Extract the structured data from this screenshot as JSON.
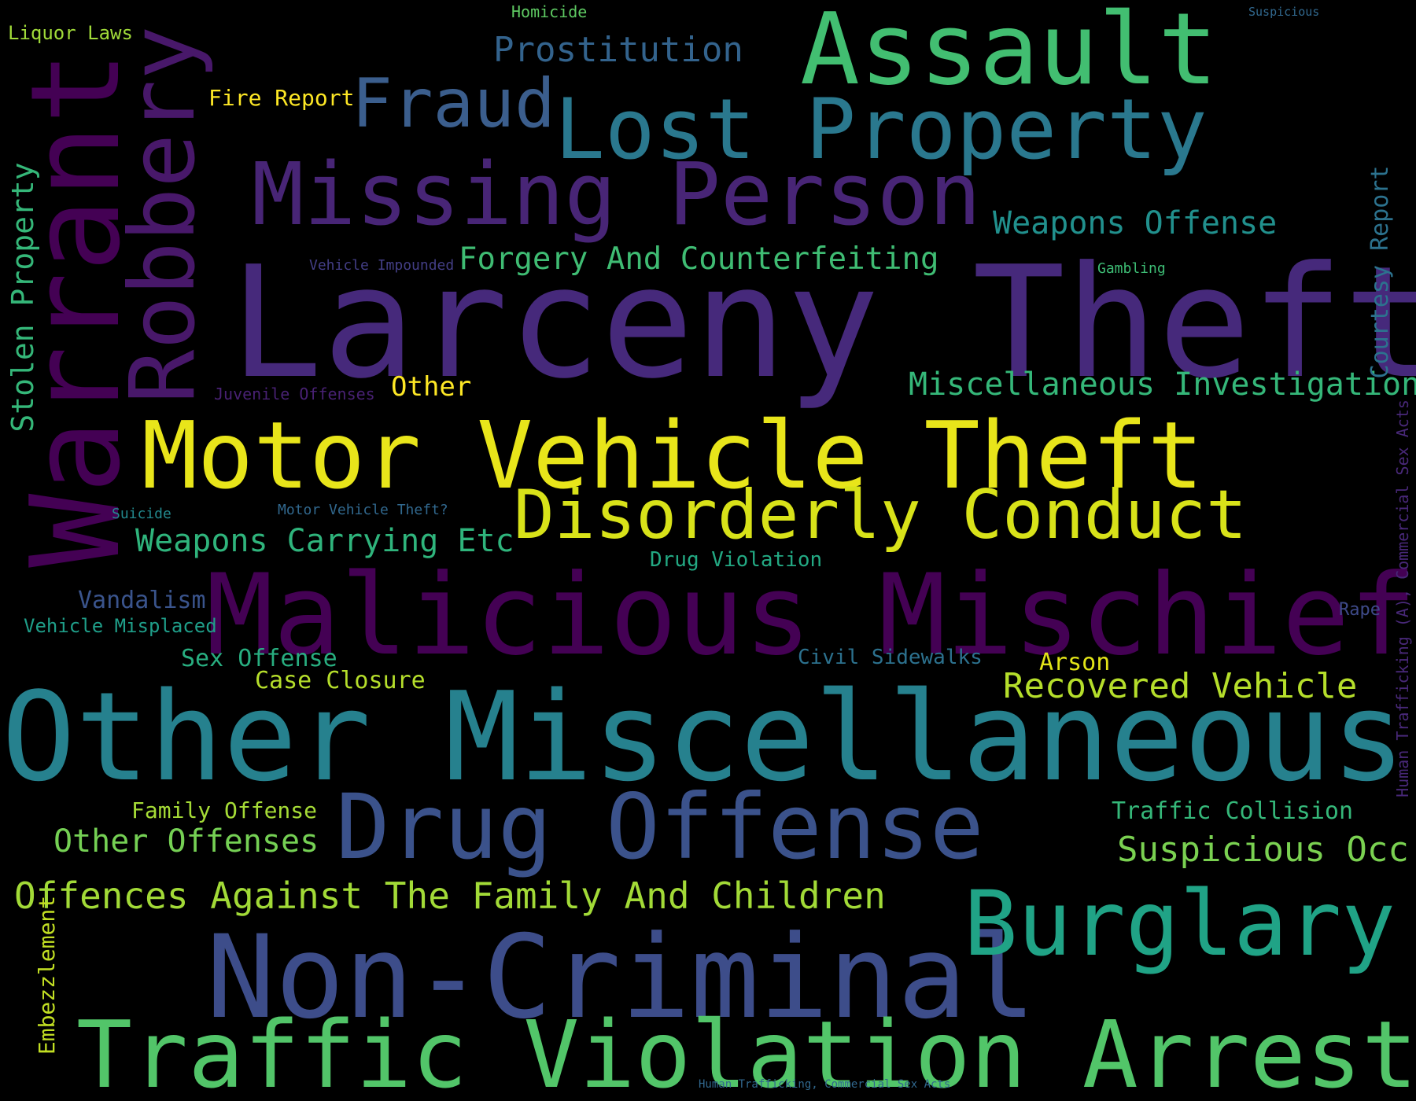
{
  "words": {
    "larceny_theft": {
      "text": "Larceny Theft",
      "color": "#46297b"
    },
    "other_miscellaneous": {
      "text": "Other Miscellaneous",
      "color": "#26818e"
    },
    "malicious_mischief": {
      "text": "Malicious Mischief",
      "color": "#440154"
    },
    "non_criminal": {
      "text": "Non-Criminal",
      "color": "#3d4d8a"
    },
    "traffic_violation_arrest": {
      "text": "Traffic Violation Arrest",
      "color": "#52c569"
    },
    "warrant": {
      "text": "Warrant",
      "color": "#440154"
    },
    "motor_vehicle_theft": {
      "text": "Motor Vehicle Theft",
      "color": "#e8e51a"
    },
    "drug_offense": {
      "text": "Drug Offense",
      "color": "#3b528b"
    },
    "missing_person": {
      "text": "Missing Person",
      "color": "#482576"
    },
    "lost_property": {
      "text": "Lost Property",
      "color": "#2a788e"
    },
    "assault": {
      "text": "Assault",
      "color": "#42be71"
    },
    "robbery": {
      "text": "Robbery",
      "color": "#48186a"
    },
    "burglary": {
      "text": "Burglary",
      "color": "#20a386"
    },
    "disorderly_conduct": {
      "text": "Disorderly Conduct",
      "color": "#d8e219"
    },
    "fraud": {
      "text": "Fraud",
      "color": "#3b5e8d"
    },
    "prostitution": {
      "text": "Prostitution",
      "color": "#33638d"
    },
    "weapons_offense": {
      "text": "Weapons Offense",
      "color": "#21908d"
    },
    "forgery_and_counterfeiting": {
      "text": "Forgery And Counterfeiting",
      "color": "#3fbc73"
    },
    "miscellaneous_investigation": {
      "text": "Miscellaneous Investigation",
      "color": "#35b779"
    },
    "weapons_carrying_etc": {
      "text": "Weapons Carrying Etc",
      "color": "#2fb47c"
    },
    "recovered_vehicle": {
      "text": "Recovered Vehicle",
      "color": "#b5de2b"
    },
    "traffic_collision": {
      "text": "Traffic Collision",
      "color": "#35b779"
    },
    "suspicious_occ": {
      "text": "Suspicious Occ",
      "color": "#7ad151"
    },
    "offences_against_family": {
      "text": "Offences Against The Family And Children",
      "color": "#a2da37"
    },
    "other_offenses": {
      "text": "Other Offenses",
      "color": "#75d054"
    },
    "family_offense": {
      "text": "Family Offense",
      "color": "#a5db36"
    },
    "sex_offense": {
      "text": "Sex Offense",
      "color": "#28ae80"
    },
    "case_closure": {
      "text": "Case Closure",
      "color": "#b5de2b"
    },
    "civil_sidewalks": {
      "text": "Civil Sidewalks",
      "color": "#2c718e"
    },
    "arson": {
      "text": "Arson",
      "color": "#e2e418"
    },
    "drug_violation": {
      "text": "Drug Violation",
      "color": "#23a983"
    },
    "vandalism": {
      "text": "Vandalism",
      "color": "#3a548c"
    },
    "vehicle_misplaced": {
      "text": "Vehicle Misplaced",
      "color": "#1f9e89"
    },
    "suicide": {
      "text": "Suicide",
      "color": "#23898e"
    },
    "motor_vehicle_theft_q": {
      "text": "Motor Vehicle Theft?",
      "color": "#31688e"
    },
    "rape": {
      "text": "Rape",
      "color": "#3e4a89"
    },
    "other": {
      "text": "Other",
      "color": "#fde725"
    },
    "juvenile_offenses": {
      "text": "Juvenile Offenses",
      "color": "#482173"
    },
    "vehicle_impounded": {
      "text": "Vehicle Impounded",
      "color": "#433e85"
    },
    "gambling": {
      "text": "Gambling",
      "color": "#3dbc74"
    },
    "fire_report": {
      "text": "Fire Report",
      "color": "#fde725"
    },
    "liquor_laws": {
      "text": "Liquor Laws",
      "color": "#a0da39"
    },
    "homicide": {
      "text": "Homicide",
      "color": "#5ec962"
    },
    "suspicious": {
      "text": "Suspicious",
      "color": "#31688e"
    },
    "stolen_property": {
      "text": "Stolen Property",
      "color": "#35b779"
    },
    "courtesy_report": {
      "text": "Courtesy Report",
      "color": "#2c728e"
    },
    "human_trafficking_a": {
      "text": "Human Trafficking (A), Commercial Sex Acts",
      "color": "#482878"
    },
    "human_trafficking_commercial": {
      "text": "Human Trafficking, Commercial Sex Acts",
      "color": "#31688e"
    },
    "embezzlement": {
      "text": "Embezzlement",
      "color": "#c2df23"
    }
  }
}
